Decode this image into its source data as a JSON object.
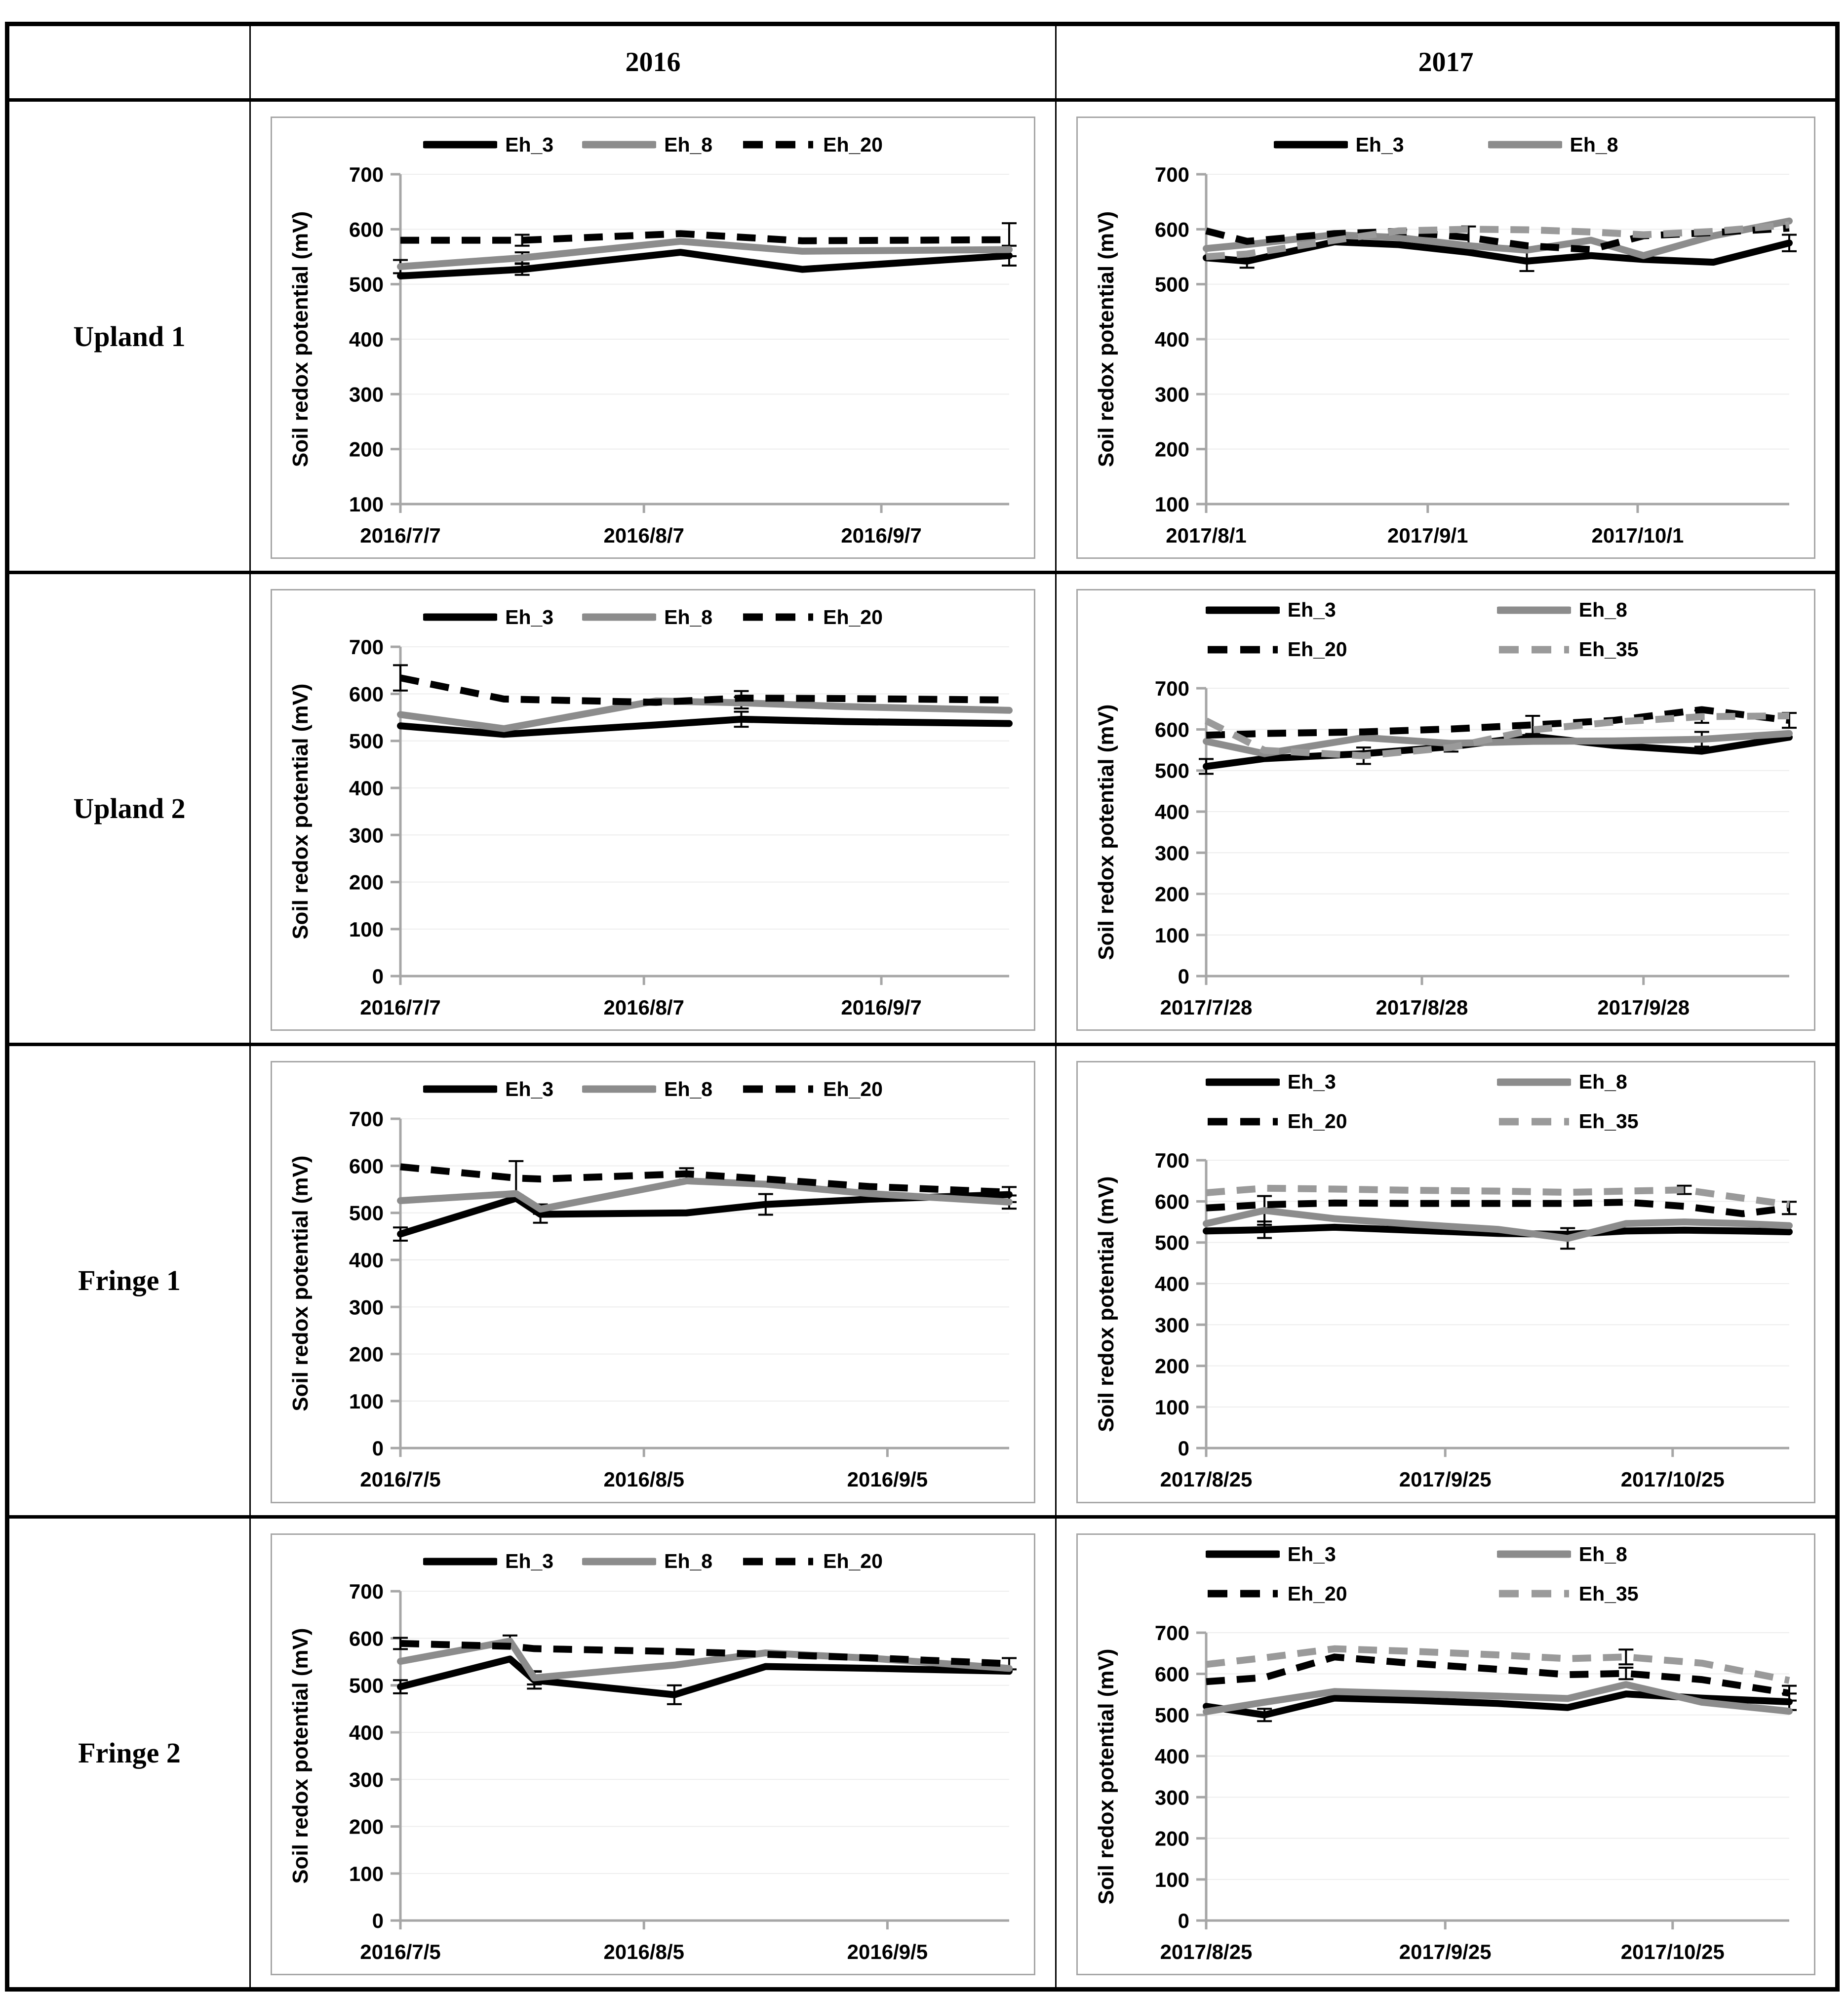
{
  "header": {
    "years": [
      "2016",
      "2017"
    ]
  },
  "rows": [
    {
      "label": "Upland 1"
    },
    {
      "label": "Upland 2"
    },
    {
      "label": "Fringe 1"
    },
    {
      "label": "Fringe 2"
    }
  ],
  "ylabel": "Soil redox potential (mV)",
  "colors": {
    "black": "#000000",
    "gray": "#8c8c8c",
    "gray_dash": "#9a9a9a",
    "axis": "#a6a6a6",
    "grid": "#ededed"
  },
  "chart_data": [
    {
      "type": "line",
      "site": "Upland 1",
      "year": "2016",
      "ylabel": "Soil redox potential (mV)",
      "ylim": [
        100,
        700
      ],
      "ytick_step": 100,
      "xtick_labels": [
        "2016/7/7",
        "2016/8/7",
        "2016/9/7"
      ],
      "xtick_pos": [
        0,
        0.4,
        0.79
      ],
      "legend_layout": "row",
      "legend": [
        "Eh_3",
        "Eh_8",
        "Eh_20"
      ],
      "series": [
        {
          "name": "Eh_3",
          "color": "#000000",
          "dash": false,
          "x": [
            0,
            0.2,
            0.46,
            0.66,
            1.0
          ],
          "y": [
            515,
            527,
            558,
            527,
            552
          ]
        },
        {
          "name": "Eh_8",
          "color": "#8c8c8c",
          "dash": false,
          "x": [
            0,
            0.2,
            0.46,
            0.66,
            1.0
          ],
          "y": [
            532,
            548,
            578,
            560,
            563
          ]
        },
        {
          "name": "Eh_20",
          "color": "#000000",
          "dash": true,
          "x": [
            0,
            0.2,
            0.46,
            0.66,
            1.0
          ],
          "y": [
            580,
            580,
            592,
            579,
            581
          ]
        }
      ],
      "error_bars": [
        [
          0,
          1,
          10
        ],
        [
          0,
          4,
          18
        ],
        [
          1,
          0,
          12
        ],
        [
          1,
          1,
          10
        ],
        [
          2,
          1,
          10
        ],
        [
          2,
          4,
          30
        ]
      ]
    },
    {
      "type": "line",
      "site": "Upland 1",
      "year": "2017",
      "ylabel": "Soil redox potential (mV)",
      "ylim": [
        100,
        700
      ],
      "ytick_step": 100,
      "xtick_labels": [
        "2017/8/1",
        "2017/9/1",
        "2017/10/1"
      ],
      "xtick_pos": [
        0,
        0.38,
        0.74
      ],
      "legend_layout": "row",
      "legend": [
        "Eh_3",
        "Eh_8"
      ],
      "series": [
        {
          "name": "Eh_3",
          "color": "#000000",
          "dash": false,
          "x": [
            0,
            0.07,
            0.22,
            0.33,
            0.45,
            0.55,
            0.66,
            0.75,
            0.87,
            1.0
          ],
          "y": [
            548,
            542,
            577,
            572,
            558,
            542,
            552,
            545,
            540,
            575
          ]
        },
        {
          "name": "Eh_8",
          "color": "#8c8c8c",
          "dash": false,
          "x": [
            0,
            0.07,
            0.22,
            0.33,
            0.45,
            0.55,
            0.66,
            0.75,
            0.87,
            1.0
          ],
          "y": [
            565,
            572,
            590,
            585,
            570,
            562,
            580,
            552,
            588,
            615
          ]
        },
        {
          "name": "Eh_20",
          "color": "#000000",
          "dash": true,
          "x": [
            0,
            0.07,
            0.22,
            0.33,
            0.45,
            0.55,
            0.66,
            0.75,
            0.87,
            1.0
          ],
          "y": [
            597,
            578,
            592,
            596,
            585,
            570,
            563,
            588,
            594,
            602
          ]
        },
        {
          "name": "Eh_35",
          "color": "#9a9a9a",
          "dash": true,
          "x": [
            0,
            0.07,
            0.22,
            0.33,
            0.45,
            0.55,
            0.66,
            0.75,
            0.87,
            1.0
          ],
          "y": [
            550,
            555,
            580,
            597,
            600,
            599,
            595,
            590,
            596,
            608
          ]
        }
      ],
      "error_bars": [
        [
          0,
          1,
          12
        ],
        [
          0,
          5,
          18
        ],
        [
          0,
          9,
          15
        ],
        [
          2,
          4,
          20
        ]
      ]
    },
    {
      "type": "line",
      "site": "Upland 2",
      "year": "2016",
      "ylabel": "Soil redox potential (mV)",
      "ylim": [
        0,
        700
      ],
      "ytick_step": 100,
      "xtick_labels": [
        "2016/7/7",
        "2016/8/7",
        "2016/9/7"
      ],
      "xtick_pos": [
        0,
        0.4,
        0.79
      ],
      "legend_layout": "row",
      "legend": [
        "Eh_3",
        "Eh_8",
        "Eh_20"
      ],
      "series": [
        {
          "name": "Eh_3",
          "color": "#000000",
          "dash": false,
          "x": [
            0,
            0.17,
            0.42,
            0.56,
            0.73,
            1.0
          ],
          "y": [
            532,
            514,
            534,
            546,
            541,
            537
          ]
        },
        {
          "name": "Eh_8",
          "color": "#8c8c8c",
          "dash": false,
          "x": [
            0,
            0.17,
            0.42,
            0.56,
            0.73,
            1.0
          ],
          "y": [
            556,
            526,
            585,
            581,
            573,
            565
          ]
        },
        {
          "name": "Eh_20",
          "color": "#000000",
          "dash": true,
          "x": [
            0,
            0.17,
            0.42,
            0.56,
            0.73,
            1.0
          ],
          "y": [
            634,
            589,
            582,
            591,
            590,
            587
          ]
        }
      ],
      "error_bars": [
        [
          2,
          0,
          27
        ],
        [
          2,
          3,
          15
        ],
        [
          0,
          3,
          16
        ],
        [
          1,
          3,
          12
        ]
      ]
    },
    {
      "type": "line",
      "site": "Upland 2",
      "year": "2017",
      "ylabel": "Soil redox potential (mV)",
      "ylim": [
        0,
        700
      ],
      "ytick_step": 100,
      "xtick_labels": [
        "2017/7/28",
        "2017/8/28",
        "2017/9/28"
      ],
      "xtick_pos": [
        0,
        0.37,
        0.75
      ],
      "legend_layout": "grid",
      "legend": [
        "Eh_3",
        "Eh_8",
        "Eh_20",
        "Eh_35"
      ],
      "series": [
        {
          "name": "Eh_3",
          "color": "#000000",
          "dash": false,
          "x": [
            0,
            0.1,
            0.27,
            0.42,
            0.56,
            0.7,
            0.85,
            1.0
          ],
          "y": [
            510,
            529,
            541,
            558,
            583,
            561,
            547,
            581
          ]
        },
        {
          "name": "Eh_8",
          "color": "#8c8c8c",
          "dash": false,
          "x": [
            0,
            0.1,
            0.27,
            0.42,
            0.56,
            0.7,
            0.85,
            1.0
          ],
          "y": [
            571,
            541,
            580,
            566,
            571,
            572,
            576,
            590
          ]
        },
        {
          "name": "Eh_20",
          "color": "#000000",
          "dash": true,
          "x": [
            0,
            0.1,
            0.27,
            0.42,
            0.56,
            0.7,
            0.85,
            1.0
          ],
          "y": [
            586,
            590,
            594,
            601,
            611,
            622,
            648,
            622
          ]
        },
        {
          "name": "Eh_35",
          "color": "#9a9a9a",
          "dash": true,
          "x": [
            0,
            0.1,
            0.27,
            0.42,
            0.56,
            0.7,
            0.85,
            1.0
          ],
          "y": [
            621,
            549,
            536,
            556,
            599,
            618,
            631,
            633
          ]
        }
      ],
      "error_bars": [
        [
          0,
          0,
          18
        ],
        [
          0,
          3,
          12
        ],
        [
          1,
          6,
          18
        ],
        [
          2,
          4,
          22
        ],
        [
          2,
          7,
          18
        ],
        [
          3,
          2,
          20
        ],
        [
          3,
          6,
          15
        ]
      ]
    },
    {
      "type": "line",
      "site": "Fringe 1",
      "year": "2016",
      "ylabel": "Soil redox potential (mV)",
      "ylim": [
        0,
        700
      ],
      "ytick_step": 100,
      "xtick_labels": [
        "2016/7/5",
        "2016/8/5",
        "2016/9/5"
      ],
      "xtick_pos": [
        0,
        0.4,
        0.8
      ],
      "legend_layout": "row",
      "legend": [
        "Eh_3",
        "Eh_8",
        "Eh_20"
      ],
      "series": [
        {
          "name": "Eh_3",
          "color": "#000000",
          "dash": false,
          "x": [
            0,
            0.19,
            0.23,
            0.47,
            0.6,
            0.77,
            1.0
          ],
          "y": [
            455,
            531,
            497,
            500,
            518,
            529,
            539
          ]
        },
        {
          "name": "Eh_8",
          "color": "#8c8c8c",
          "dash": false,
          "x": [
            0,
            0.19,
            0.23,
            0.47,
            0.6,
            0.77,
            1.0
          ],
          "y": [
            526,
            541,
            508,
            568,
            561,
            541,
            523
          ]
        },
        {
          "name": "Eh_20",
          "color": "#000000",
          "dash": true,
          "x": [
            0,
            0.19,
            0.23,
            0.47,
            0.6,
            0.77,
            1.0
          ],
          "y": [
            598,
            574,
            572,
            583,
            572,
            556,
            544
          ]
        }
      ],
      "error_bars": [
        [
          0,
          0,
          14
        ],
        [
          0,
          2,
          18
        ],
        [
          0,
          4,
          22
        ],
        [
          0,
          6,
          16
        ],
        [
          1,
          2,
          10
        ],
        [
          1,
          6,
          14
        ],
        [
          2,
          1,
          36
        ],
        [
          2,
          3,
          12
        ]
      ]
    },
    {
      "type": "line",
      "site": "Fringe 1",
      "year": "2017",
      "ylabel": "Soil redox potential (mV)",
      "ylim": [
        0,
        700
      ],
      "ytick_step": 100,
      "xtick_labels": [
        "2017/8/25",
        "2017/9/25",
        "2017/10/25"
      ],
      "xtick_pos": [
        0,
        0.41,
        0.8
      ],
      "legend_layout": "grid",
      "legend": [
        "Eh_3",
        "Eh_8",
        "Eh_20",
        "Eh_35"
      ],
      "series": [
        {
          "name": "Eh_3",
          "color": "#000000",
          "dash": false,
          "x": [
            0,
            0.1,
            0.22,
            0.35,
            0.5,
            0.62,
            0.72,
            0.82,
            0.92,
            1.0
          ],
          "y": [
            528,
            531,
            537,
            530,
            522,
            520,
            528,
            530,
            528,
            526
          ]
        },
        {
          "name": "Eh_8",
          "color": "#8c8c8c",
          "dash": false,
          "x": [
            0,
            0.1,
            0.22,
            0.35,
            0.5,
            0.62,
            0.72,
            0.82,
            0.92,
            1.0
          ],
          "y": [
            546,
            578,
            558,
            545,
            532,
            510,
            546,
            550,
            546,
            541
          ]
        },
        {
          "name": "Eh_20",
          "color": "#000000",
          "dash": true,
          "x": [
            0,
            0.1,
            0.22,
            0.35,
            0.5,
            0.62,
            0.72,
            0.82,
            0.92,
            1.0
          ],
          "y": [
            584,
            592,
            596,
            595,
            595,
            595,
            598,
            588,
            570,
            584
          ]
        },
        {
          "name": "Eh_35",
          "color": "#9a9a9a",
          "dash": true,
          "x": [
            0,
            0.1,
            0.22,
            0.35,
            0.5,
            0.62,
            0.72,
            0.82,
            0.92,
            1.0
          ],
          "y": [
            621,
            632,
            630,
            627,
            625,
            622,
            625,
            628,
            608,
            592
          ]
        }
      ],
      "error_bars": [
        [
          0,
          1,
          20
        ],
        [
          1,
          1,
          35
        ],
        [
          1,
          5,
          25
        ],
        [
          2,
          9,
          15
        ],
        [
          3,
          7,
          10
        ]
      ]
    },
    {
      "type": "line",
      "site": "Fringe 2",
      "year": "2016",
      "ylabel": "Soil redox potential (mV)",
      "ylim": [
        0,
        700
      ],
      "ytick_step": 100,
      "xtick_labels": [
        "2016/7/5",
        "2016/8/5",
        "2016/9/5"
      ],
      "xtick_pos": [
        0,
        0.4,
        0.8
      ],
      "legend_layout": "row",
      "legend": [
        "Eh_3",
        "Eh_8",
        "Eh_20"
      ],
      "series": [
        {
          "name": "Eh_3",
          "color": "#000000",
          "dash": false,
          "x": [
            0,
            0.18,
            0.22,
            0.45,
            0.6,
            0.78,
            1.0
          ],
          "y": [
            497,
            556,
            511,
            480,
            540,
            536,
            530
          ]
        },
        {
          "name": "Eh_8",
          "color": "#8c8c8c",
          "dash": false,
          "x": [
            0,
            0.18,
            0.22,
            0.45,
            0.6,
            0.78,
            1.0
          ],
          "y": [
            551,
            594,
            516,
            543,
            569,
            557,
            536
          ]
        },
        {
          "name": "Eh_20",
          "color": "#000000",
          "dash": true,
          "x": [
            0,
            0.18,
            0.22,
            0.45,
            0.6,
            0.78,
            1.0
          ],
          "y": [
            589,
            583,
            578,
            572,
            566,
            558,
            546
          ]
        }
      ],
      "error_bars": [
        [
          0,
          0,
          14
        ],
        [
          0,
          2,
          18
        ],
        [
          0,
          3,
          20
        ],
        [
          1,
          1,
          12
        ],
        [
          1,
          2,
          14
        ],
        [
          2,
          0,
          12
        ],
        [
          2,
          6,
          12
        ]
      ]
    },
    {
      "type": "line",
      "site": "Fringe 2",
      "year": "2017",
      "ylabel": "Soil redox potential (mV)",
      "ylim": [
        0,
        700
      ],
      "ytick_step": 100,
      "xtick_labels": [
        "2017/8/25",
        "2017/9/25",
        "2017/10/25"
      ],
      "xtick_pos": [
        0,
        0.41,
        0.8
      ],
      "legend_layout": "grid",
      "legend": [
        "Eh_3",
        "Eh_8",
        "Eh_20",
        "Eh_35"
      ],
      "series": [
        {
          "name": "Eh_3",
          "color": "#000000",
          "dash": false,
          "x": [
            0,
            0.1,
            0.22,
            0.35,
            0.5,
            0.62,
            0.72,
            0.85,
            1.0
          ],
          "y": [
            521,
            500,
            541,
            536,
            528,
            518,
            551,
            541,
            532
          ]
        },
        {
          "name": "Eh_8",
          "color": "#8c8c8c",
          "dash": false,
          "x": [
            0,
            0.1,
            0.22,
            0.35,
            0.5,
            0.62,
            0.72,
            0.85,
            1.0
          ],
          "y": [
            508,
            531,
            557,
            552,
            546,
            540,
            574,
            531,
            509
          ]
        },
        {
          "name": "Eh_20",
          "color": "#000000",
          "dash": true,
          "x": [
            0,
            0.1,
            0.22,
            0.35,
            0.5,
            0.62,
            0.72,
            0.85,
            1.0
          ],
          "y": [
            581,
            591,
            641,
            626,
            611,
            598,
            601,
            586,
            553
          ]
        },
        {
          "name": "Eh_35",
          "color": "#9a9a9a",
          "dash": true,
          "x": [
            0,
            0.1,
            0.22,
            0.35,
            0.5,
            0.62,
            0.72,
            0.85,
            1.0
          ],
          "y": [
            623,
            639,
            661,
            655,
            646,
            637,
            641,
            626,
            584
          ]
        }
      ],
      "error_bars": [
        [
          0,
          1,
          15
        ],
        [
          0,
          8,
          20
        ],
        [
          2,
          6,
          14
        ],
        [
          2,
          8,
          18
        ],
        [
          3,
          6,
          18
        ]
      ]
    }
  ]
}
